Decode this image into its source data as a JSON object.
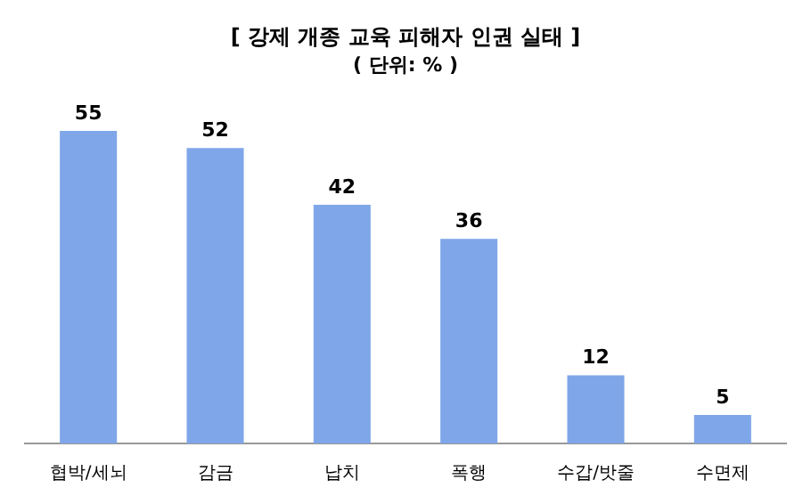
{
  "chart_data": {
    "type": "bar",
    "title": "[ 강제 개종 교육 피해자 인권 실태 ]",
    "subtitle": "( 단위: % )",
    "categories": [
      "협박/세뇌",
      "감금",
      "납치",
      "폭행",
      "수갑/밧줄",
      "수면제"
    ],
    "values": [
      55,
      52,
      42,
      36,
      12,
      5
    ],
    "color": "#7fa6e8",
    "data_labels": true,
    "grid": false,
    "legend": false
  }
}
